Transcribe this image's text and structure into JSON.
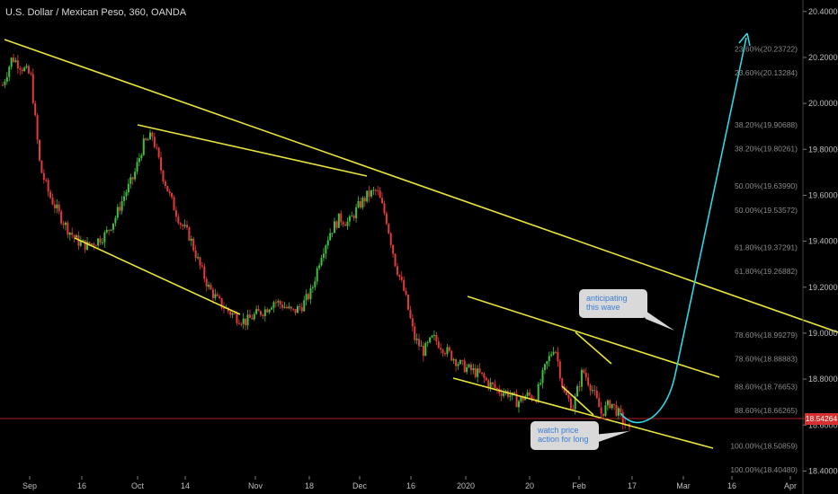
{
  "header": {
    "title": "U.S. Dollar / Mexican Peso, 360, OANDA"
  },
  "chart_data": {
    "type": "candlestick",
    "symbol": "USD/MXN",
    "interval": "360",
    "source": "OANDA",
    "ylim": [
      18.3,
      20.45
    ],
    "grid": false,
    "x_ticks": [
      "Sep",
      "16",
      "Oct",
      "14",
      "Nov",
      "18",
      "Dec",
      "16",
      "2020",
      "20",
      "Feb",
      "17",
      "Mar",
      "16",
      "Apr"
    ],
    "y_ticks": [
      "20.40000",
      "20.20000",
      "20.00000",
      "19.80000",
      "19.60000",
      "19.40000",
      "19.20000",
      "19.00000",
      "18.80000",
      "18.60000",
      "18.40000"
    ],
    "current_price": "18.54264",
    "fib_levels": [
      {
        "label": "23.60%(20.23722)",
        "price": 20.23722
      },
      {
        "label": "23.60%(20.13284)",
        "price": 20.13284
      },
      {
        "label": "38.20%(19.90688)",
        "price": 19.90688
      },
      {
        "label": "38.20%(19.80261)",
        "price": 19.80261
      },
      {
        "label": "50.00%(19.63990)",
        "price": 19.6399
      },
      {
        "label": "50.00%(19.53572)",
        "price": 19.53572
      },
      {
        "label": "61.80%(19.37291)",
        "price": 19.37291
      },
      {
        "label": "61.80%(19.26882)",
        "price": 19.26882
      },
      {
        "label": "78.60%(18.99279)",
        "price": 18.99279
      },
      {
        "label": "78.60%(18.88883)",
        "price": 18.88883
      },
      {
        "label": "88.60%(18.76653)",
        "price": 18.76653
      },
      {
        "label": "88.60%(18.66265)",
        "price": 18.66265
      },
      {
        "label": "100.00%(18.50859)",
        "price": 18.50859
      },
      {
        "label": "100.00%(18.40480)",
        "price": 18.4048
      }
    ],
    "price_path": [
      20.08,
      20.2,
      20.16,
      20.12,
      19.72,
      19.6,
      19.52,
      19.45,
      19.4,
      19.38,
      19.4,
      19.43,
      19.5,
      19.6,
      19.68,
      19.82,
      19.86,
      19.7,
      19.58,
      19.48,
      19.42,
      19.3,
      19.2,
      19.14,
      19.1,
      19.07,
      19.05,
      19.08,
      19.1,
      19.14,
      19.12,
      19.09,
      19.12,
      19.18,
      19.34,
      19.44,
      19.5,
      19.48,
      19.55,
      19.6,
      19.62,
      19.5,
      19.3,
      19.17,
      18.98,
      18.92,
      18.98,
      18.94,
      18.9,
      18.86,
      18.84,
      18.82,
      18.78,
      18.75,
      18.74,
      18.7,
      18.73,
      18.72,
      18.85,
      18.95,
      18.74,
      18.68,
      18.84,
      18.76,
      18.65,
      18.7,
      18.64,
      18.57
    ],
    "annotations": [
      "anticipating this wave",
      "watch price action for long"
    ]
  }
}
